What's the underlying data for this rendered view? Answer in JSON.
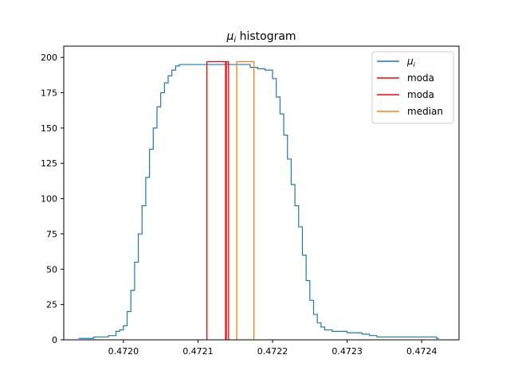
{
  "chart_data": {
    "type": "histogram",
    "title": "μ histogram",
    "title_subscript": "i",
    "xlabel": "",
    "ylabel": "",
    "xlim": [
      0.47192,
      0.47245
    ],
    "ylim": [
      0,
      208
    ],
    "x_ticks": [
      0.472,
      0.4721,
      0.4722,
      0.4723,
      0.4724
    ],
    "x_tick_labels": [
      "0.4720",
      "0.4721",
      "0.4722",
      "0.4723",
      "0.4724"
    ],
    "y_ticks": [
      0,
      25,
      50,
      75,
      100,
      125,
      150,
      175,
      200
    ],
    "y_tick_labels": [
      "0",
      "25",
      "50",
      "75",
      "100",
      "125",
      "150",
      "175",
      "200"
    ],
    "grid": false,
    "legend_position": "top-right",
    "series": [
      {
        "name": "μ",
        "name_subscript": "i",
        "kind": "step",
        "color": "#1f77b4",
        "x": [
          0.47194,
          0.47196,
          0.47197,
          0.47198,
          0.47199,
          0.471995,
          0.472,
          0.472005,
          0.47201,
          0.472015,
          0.47202,
          0.472025,
          0.47203,
          0.472035,
          0.47204,
          0.472045,
          0.47205,
          0.472055,
          0.47206,
          0.472065,
          0.47207,
          0.472075,
          0.47208,
          0.472085,
          0.47209,
          0.4721,
          0.47211,
          0.47212,
          0.47213,
          0.47214,
          0.47215,
          0.47216,
          0.47217,
          0.47218,
          0.47219,
          0.4722,
          0.472205,
          0.47221,
          0.472215,
          0.47222,
          0.472225,
          0.47223,
          0.472235,
          0.47224,
          0.472245,
          0.47225,
          0.472255,
          0.47226,
          0.472265,
          0.47227,
          0.47228,
          0.47229,
          0.4723,
          0.47231,
          0.47232,
          0.47233,
          0.47234,
          0.47235,
          0.47236,
          0.47237,
          0.47238,
          0.47239,
          0.4724,
          0.47241,
          0.47242
        ],
        "y": [
          1,
          2,
          2,
          3,
          6,
          7,
          10,
          20,
          35,
          55,
          75,
          95,
          115,
          135,
          150,
          165,
          175,
          182,
          187,
          191,
          194,
          195,
          195,
          195,
          195,
          195,
          195,
          195,
          195,
          195,
          195,
          195,
          193,
          192,
          191,
          185,
          172,
          160,
          145,
          128,
          110,
          95,
          80,
          60,
          42,
          28,
          18,
          12,
          9,
          7,
          6,
          6,
          5,
          5,
          4,
          3,
          2,
          2,
          2,
          2,
          2,
          2,
          2,
          2,
          1
        ]
      },
      {
        "name": "moda",
        "kind": "box",
        "color": "#ff0000",
        "x0": 0.472112,
        "x1": 0.472138,
        "y": 197
      },
      {
        "name": "moda",
        "kind": "box",
        "color": "#ff0000",
        "x0": 0.472137,
        "x1": 0.472141,
        "y": 197
      },
      {
        "name": "median",
        "kind": "box",
        "color": "#ff7f0e",
        "x0": 0.472152,
        "x1": 0.472175,
        "y": 197
      }
    ]
  }
}
